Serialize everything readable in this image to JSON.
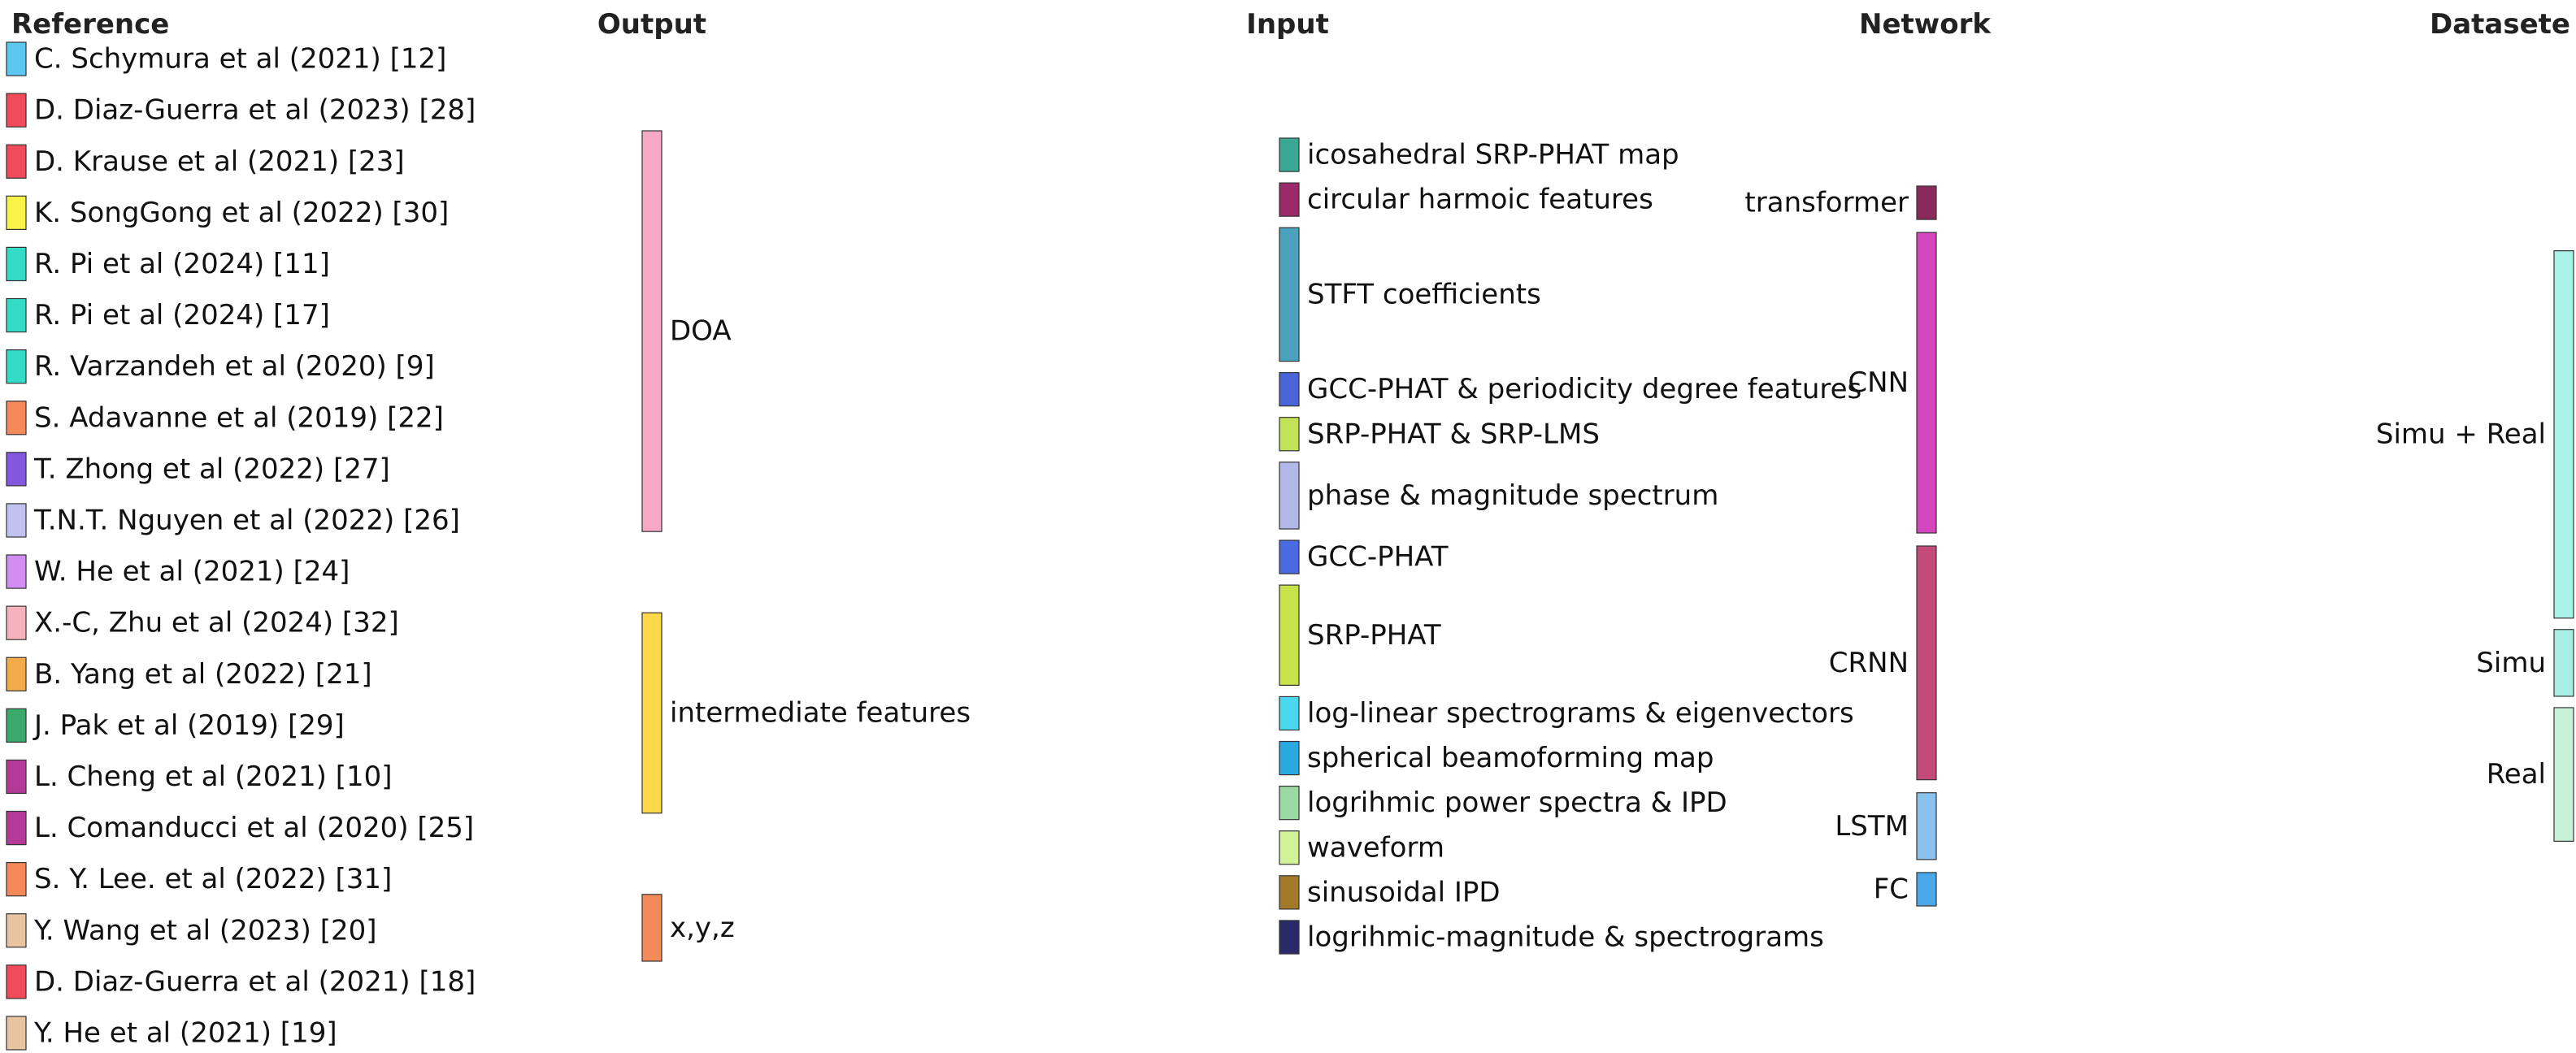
{
  "diagram": {
    "type": "sankey",
    "columns": [
      {
        "key": "reference",
        "title": "Reference"
      },
      {
        "key": "output",
        "title": "Output"
      },
      {
        "key": "input",
        "title": "Input"
      },
      {
        "key": "network",
        "title": "Network"
      },
      {
        "key": "dataset",
        "title": "Datasete"
      }
    ],
    "nodes": [
      {
        "id": "r1",
        "col": 0,
        "label": "C. Schymura et al (2021) [12]",
        "color": "#5ac8f0"
      },
      {
        "id": "r2",
        "col": 0,
        "label": "D. Diaz-Guerra et al (2023) [28]",
        "color": "#ef4b5a"
      },
      {
        "id": "r3",
        "col": 0,
        "label": "D. Krause et al (2021) [23]",
        "color": "#ef4b5a"
      },
      {
        "id": "r4",
        "col": 0,
        "label": "K. SongGong et al (2022) [30]",
        "color": "#fbf34a"
      },
      {
        "id": "r5",
        "col": 0,
        "label": "R. Pi et al (2024) [11]",
        "color": "#33dcc6"
      },
      {
        "id": "r6",
        "col": 0,
        "label": "R. Pi et al (2024) [17]",
        "color": "#33dcc6"
      },
      {
        "id": "r7",
        "col": 0,
        "label": "R. Varzandeh et al (2020) [9]",
        "color": "#33dcc6"
      },
      {
        "id": "r8",
        "col": 0,
        "label": "S. Adavanne et al (2019) [22]",
        "color": "#f48a5a"
      },
      {
        "id": "r9",
        "col": 0,
        "label": "T. Zhong et al (2022) [27]",
        "color": "#8357e0"
      },
      {
        "id": "r10",
        "col": 0,
        "label": "T.N.T. Nguyen et al (2022) [26]",
        "color": "#c2c2ee"
      },
      {
        "id": "r11",
        "col": 0,
        "label": "W. He et al (2021) [24]",
        "color": "#d28cf2"
      },
      {
        "id": "r12",
        "col": 0,
        "label": "X.-C, Zhu et al (2024) [32]",
        "color": "#f7b3bc"
      },
      {
        "id": "r13",
        "col": 0,
        "label": "B. Yang et al (2022) [21]",
        "color": "#f2ad4a"
      },
      {
        "id": "r14",
        "col": 0,
        "label": "J. Pak et al (2019) [29]",
        "color": "#3aaa6a"
      },
      {
        "id": "r15",
        "col": 0,
        "label": "L. Cheng et al (2021) [10]",
        "color": "#b43a9a"
      },
      {
        "id": "r16",
        "col": 0,
        "label": "L. Comanducci et al (2020) [25]",
        "color": "#b43a9a"
      },
      {
        "id": "r17",
        "col": 0,
        "label": "S. Y. Lee. et al (2022) [31]",
        "color": "#f48a5a"
      },
      {
        "id": "r18",
        "col": 0,
        "label": "Y. Wang et al (2023) [20]",
        "color": "#e8c4a0"
      },
      {
        "id": "r19",
        "col": 0,
        "label": "D. Diaz-Guerra et al (2021) [18]",
        "color": "#ef4b5a"
      },
      {
        "id": "r20",
        "col": 0,
        "label": "Y. He et al (2021) [19]",
        "color": "#e8c4a0"
      },
      {
        "id": "doa",
        "col": 1,
        "label": "DOA",
        "color": "#f7a8c4"
      },
      {
        "id": "inter",
        "col": 1,
        "label": "intermediate features",
        "color": "#fcd84a"
      },
      {
        "id": "xyz",
        "col": 1,
        "label": "x,y,z",
        "color": "#f28a5a"
      },
      {
        "id": "i1",
        "col": 2,
        "label": "icosahedral SRP-PHAT map",
        "color": "#3aa894"
      },
      {
        "id": "i2",
        "col": 2,
        "label": "circular harmoic features",
        "color": "#9c2a6a"
      },
      {
        "id": "i3",
        "col": 2,
        "label": "STFT coefficients",
        "color": "#4aa2be"
      },
      {
        "id": "i4",
        "col": 2,
        "label": "GCC-PHAT & periodicity degree features",
        "color": "#4a64d8"
      },
      {
        "id": "i5",
        "col": 2,
        "label": "SRP-PHAT & SRP-LMS",
        "color": "#c2e25a"
      },
      {
        "id": "i6",
        "col": 2,
        "label": "phase & magnitude spectrum",
        "color": "#b2b8e8"
      },
      {
        "id": "i7",
        "col": 2,
        "label": "GCC-PHAT",
        "color": "#4a6ae0"
      },
      {
        "id": "i8",
        "col": 2,
        "label": "SRP-PHAT",
        "color": "#c8e24a"
      },
      {
        "id": "i9",
        "col": 2,
        "label": "log-linear spectrograms & eigenvectors",
        "color": "#4ad8ee"
      },
      {
        "id": "i10",
        "col": 2,
        "label": "spherical beamoforming map",
        "color": "#2aa8e0"
      },
      {
        "id": "i11",
        "col": 2,
        "label": "logrihmic power spectra & IPD",
        "color": "#9ad8a4"
      },
      {
        "id": "i12",
        "col": 2,
        "label": "waveform",
        "color": "#d2f29a"
      },
      {
        "id": "i13",
        "col": 2,
        "label": "sinusoidal IPD",
        "color": "#a27a2a"
      },
      {
        "id": "i14",
        "col": 2,
        "label": "logrihmic-magnitude & spectrograms",
        "color": "#2a2a6a"
      },
      {
        "id": "transformer",
        "col": 3,
        "label": "transformer",
        "color": "#8a2a5a"
      },
      {
        "id": "cnn",
        "col": 3,
        "label": "CNN",
        "color": "#d446be"
      },
      {
        "id": "crnn",
        "col": 3,
        "label": "CRNN",
        "color": "#c44a7a"
      },
      {
        "id": "lstm",
        "col": 3,
        "label": "LSTM",
        "color": "#8ac2ee"
      },
      {
        "id": "fc",
        "col": 3,
        "label": "FC",
        "color": "#4aa8e8"
      },
      {
        "id": "simureal",
        "col": 4,
        "label": "Simu + Real",
        "color": "#a8f2e8"
      },
      {
        "id": "simu",
        "col": 4,
        "label": "Simu",
        "color": "#a8eee4"
      },
      {
        "id": "real",
        "col": 4,
        "label": "Real",
        "color": "#c8f2d8"
      }
    ],
    "links": [
      [
        "r1",
        "doa",
        1
      ],
      [
        "r2",
        "doa",
        1
      ],
      [
        "r3",
        "doa",
        1
      ],
      [
        "r4",
        "doa",
        1
      ],
      [
        "r5",
        "doa",
        1
      ],
      [
        "r6",
        "doa",
        1
      ],
      [
        "r7",
        "doa",
        1
      ],
      [
        "r8",
        "doa",
        1
      ],
      [
        "r9",
        "doa",
        1
      ],
      [
        "r10",
        "doa",
        1
      ],
      [
        "r11",
        "doa",
        1
      ],
      [
        "r12",
        "doa",
        1
      ],
      [
        "r13",
        "inter",
        1
      ],
      [
        "r14",
        "inter",
        1
      ],
      [
        "r15",
        "inter",
        1
      ],
      [
        "r16",
        "inter",
        1
      ],
      [
        "r17",
        "inter",
        1
      ],
      [
        "r18",
        "inter",
        1
      ],
      [
        "r19",
        "xyz",
        1
      ],
      [
        "r20",
        "xyz",
        1
      ],
      [
        "doa",
        "i1",
        1
      ],
      [
        "doa",
        "i2",
        1
      ],
      [
        "doa",
        "i3",
        3
      ],
      [
        "doa",
        "i4",
        1
      ],
      [
        "doa",
        "i5",
        1
      ],
      [
        "doa",
        "i6",
        2
      ],
      [
        "doa",
        "i7",
        1
      ],
      [
        "doa",
        "i9",
        1
      ],
      [
        "doa",
        "i10",
        1
      ],
      [
        "inter",
        "i3",
        1
      ],
      [
        "inter",
        "i8",
        2
      ],
      [
        "inter",
        "i11",
        1
      ],
      [
        "inter",
        "i12",
        1
      ],
      [
        "inter",
        "i13",
        1
      ],
      [
        "xyz",
        "i8",
        1
      ],
      [
        "xyz",
        "i14",
        1
      ],
      [
        "i1",
        "cnn",
        1
      ],
      [
        "i2",
        "cnn",
        1
      ],
      [
        "i3",
        "transformer",
        1
      ],
      [
        "i3",
        "cnn",
        1
      ],
      [
        "i3",
        "lstm",
        1
      ],
      [
        "i3",
        "crnn",
        1
      ],
      [
        "i4",
        "cnn",
        1
      ],
      [
        "i5",
        "cnn",
        1
      ],
      [
        "i6",
        "cnn",
        1
      ],
      [
        "i6",
        "crnn",
        1
      ],
      [
        "i7",
        "cnn",
        1
      ],
      [
        "i8",
        "crnn",
        2
      ],
      [
        "i8",
        "cnn",
        1
      ],
      [
        "i9",
        "crnn",
        1
      ],
      [
        "i10",
        "cnn",
        1
      ],
      [
        "i11",
        "crnn",
        1
      ],
      [
        "i12",
        "lstm",
        1
      ],
      [
        "i13",
        "crnn",
        1
      ],
      [
        "i14",
        "fc",
        1
      ],
      [
        "transformer",
        "simureal",
        1
      ],
      [
        "cnn",
        "simureal",
        6
      ],
      [
        "cnn",
        "simu",
        1
      ],
      [
        "cnn",
        "real",
        1
      ],
      [
        "crnn",
        "simureal",
        2
      ],
      [
        "crnn",
        "simu",
        1
      ],
      [
        "crnn",
        "real",
        2
      ],
      [
        "lstm",
        "simureal",
        1
      ],
      [
        "lstm",
        "real",
        1
      ],
      [
        "fc",
        "simureal",
        1
      ]
    ]
  }
}
